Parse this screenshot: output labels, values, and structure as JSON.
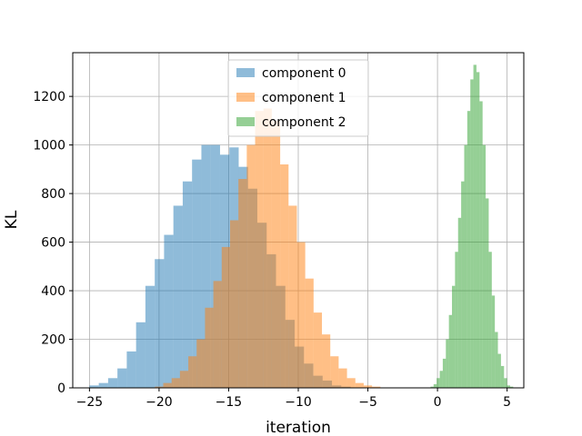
{
  "chart_data": {
    "type": "histogram",
    "title": "",
    "xlabel": "iteration",
    "ylabel": "KL",
    "xlim": [
      -26.2,
      6.2
    ],
    "ylim": [
      0,
      1380
    ],
    "xticks": [
      -25,
      -20,
      -15,
      -10,
      -5,
      0,
      5
    ],
    "yticks": [
      0,
      200,
      400,
      600,
      800,
      1000,
      1200
    ],
    "grid": true,
    "legend_position": "upper-center",
    "series": [
      {
        "name": "component 0",
        "color": "#1f77b4",
        "alpha": 0.5,
        "bin_width": 0.67,
        "start": -25.0,
        "counts": [
          10,
          20,
          40,
          80,
          150,
          270,
          420,
          530,
          630,
          750,
          850,
          940,
          1000,
          1000,
          960,
          990,
          910,
          820,
          680,
          550,
          420,
          280,
          170,
          100,
          50,
          30,
          10,
          5
        ]
      },
      {
        "name": "component 1",
        "color": "#ff7f0e",
        "alpha": 0.5,
        "bin_width": 0.6,
        "start": -20.3,
        "counts": [
          5,
          20,
          40,
          70,
          130,
          200,
          330,
          440,
          580,
          690,
          860,
          1000,
          1140,
          1150,
          1100,
          920,
          750,
          600,
          450,
          310,
          220,
          130,
          80,
          40,
          20,
          10,
          5
        ]
      },
      {
        "name": "component 2",
        "color": "#2ca02c",
        "alpha": 0.5,
        "bin_width": 0.22,
        "start": -0.5,
        "counts": [
          5,
          15,
          40,
          70,
          120,
          200,
          300,
          420,
          560,
          700,
          850,
          1000,
          1140,
          1270,
          1330,
          1300,
          1180,
          1000,
          780,
          560,
          380,
          230,
          140,
          90,
          40,
          10,
          5
        ]
      }
    ]
  }
}
